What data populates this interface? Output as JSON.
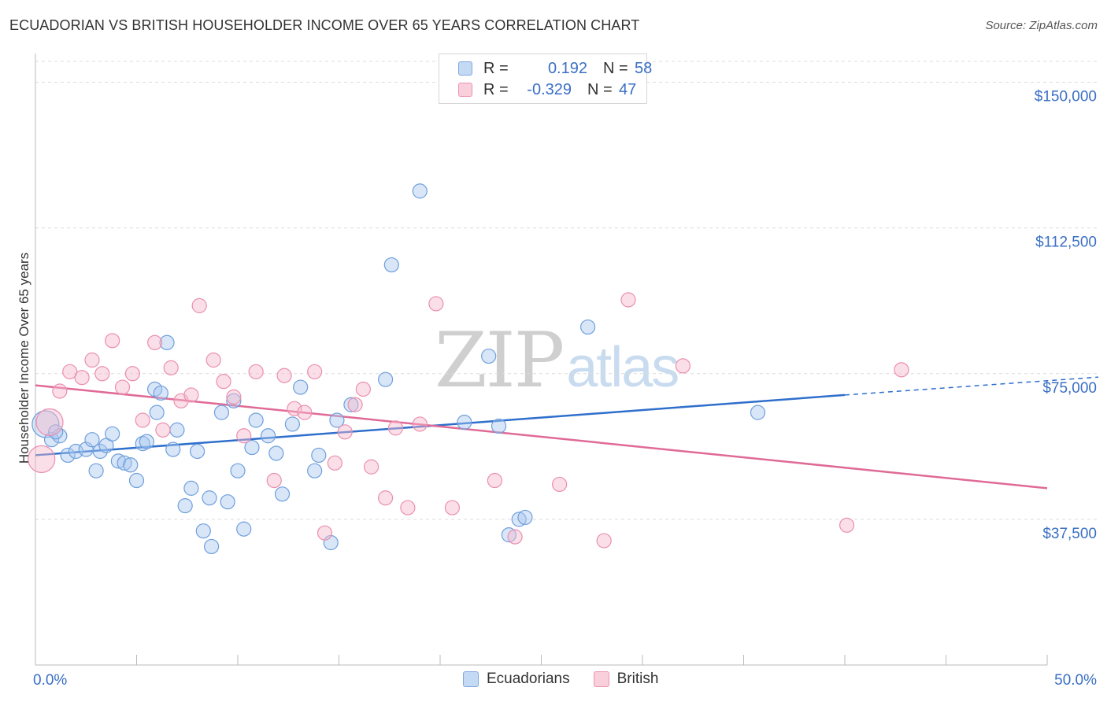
{
  "header": {
    "title": "ECUADORIAN VS BRITISH HOUSEHOLDER INCOME OVER 65 YEARS CORRELATION CHART",
    "source": "Source: ZipAtlas.com"
  },
  "watermark": {
    "zip": "ZIP",
    "atlas": "atlas"
  },
  "legend": {
    "rows": [
      {
        "r_label": "R =",
        "r_value": "0.192",
        "n_label": "N =",
        "n_value": "58",
        "color": "#a9c8f0"
      },
      {
        "r_label": "R =",
        "r_value": "-0.329",
        "n_label": "N =",
        "n_value": "47",
        "color": "#f6b8cb"
      }
    ]
  },
  "bottom_legend": {
    "items": [
      "Ecuadorians",
      "British"
    ]
  },
  "chart_data": {
    "type": "scatter",
    "ylabel": "Householder Income Over 65 years",
    "xlabel": "",
    "xlim": [
      0,
      50
    ],
    "ylim": [
      0,
      157000
    ],
    "x_tick_labels": [
      "0.0%",
      "50.0%"
    ],
    "y_ticks": [
      37500,
      75000,
      112500,
      150000
    ],
    "y_tick_labels": [
      "$37,500",
      "$75,000",
      "$112,500",
      "$150,000"
    ],
    "grid": true,
    "legend_position": "top-center",
    "colors": {
      "ecuadorians": "#a9c8f0",
      "ecuadorians_line": "#2f6fcc",
      "british": "#f6b8cb",
      "british_line": "#e06a96"
    },
    "series": [
      {
        "name": "Ecuadorians",
        "points": [
          [
            0.5,
            62000
          ],
          [
            0.8,
            58000
          ],
          [
            1.2,
            59000
          ],
          [
            1.6,
            54000
          ],
          [
            2.0,
            55000
          ],
          [
            2.5,
            55500
          ],
          [
            2.8,
            58000
          ],
          [
            3.2,
            55000
          ],
          [
            3.5,
            56500
          ],
          [
            3.8,
            59500
          ],
          [
            4.1,
            52500
          ],
          [
            4.4,
            52000
          ],
          [
            4.7,
            51500
          ],
          [
            5.0,
            47500
          ],
          [
            5.3,
            57000
          ],
          [
            5.5,
            57500
          ],
          [
            5.9,
            71000
          ],
          [
            6.2,
            70000
          ],
          [
            6.5,
            83000
          ],
          [
            6.8,
            55500
          ],
          [
            7.0,
            60500
          ],
          [
            7.4,
            41000
          ],
          [
            7.7,
            45500
          ],
          [
            8.0,
            55000
          ],
          [
            8.3,
            34500
          ],
          [
            8.6,
            43000
          ],
          [
            8.7,
            30500
          ],
          [
            9.2,
            65000
          ],
          [
            9.5,
            42000
          ],
          [
            9.8,
            68000
          ],
          [
            10.0,
            50000
          ],
          [
            10.3,
            35000
          ],
          [
            10.7,
            56000
          ],
          [
            10.9,
            63000
          ],
          [
            11.5,
            59000
          ],
          [
            11.9,
            54500
          ],
          [
            12.2,
            44000
          ],
          [
            12.7,
            62000
          ],
          [
            13.1,
            71500
          ],
          [
            13.8,
            50000
          ],
          [
            14.0,
            54000
          ],
          [
            14.6,
            31500
          ],
          [
            14.9,
            63000
          ],
          [
            15.6,
            67000
          ],
          [
            17.3,
            73500
          ],
          [
            17.6,
            103000
          ],
          [
            19.0,
            122000
          ],
          [
            21.2,
            62500
          ],
          [
            22.4,
            79500
          ],
          [
            22.9,
            61500
          ],
          [
            23.4,
            33500
          ],
          [
            23.9,
            37500
          ],
          [
            24.2,
            38000
          ],
          [
            27.3,
            87000
          ],
          [
            35.7,
            65000
          ],
          [
            1.0,
            60000
          ],
          [
            3.0,
            50000
          ],
          [
            6.0,
            65000
          ]
        ]
      },
      {
        "name": "British",
        "points": [
          [
            0.3,
            53000
          ],
          [
            0.7,
            62500
          ],
          [
            1.2,
            70500
          ],
          [
            1.7,
            75500
          ],
          [
            2.3,
            74000
          ],
          [
            2.8,
            78500
          ],
          [
            3.3,
            75000
          ],
          [
            3.8,
            83500
          ],
          [
            4.3,
            71500
          ],
          [
            4.8,
            75000
          ],
          [
            5.3,
            63000
          ],
          [
            5.9,
            83000
          ],
          [
            6.3,
            60500
          ],
          [
            6.7,
            76500
          ],
          [
            7.2,
            68000
          ],
          [
            7.7,
            69500
          ],
          [
            8.1,
            92500
          ],
          [
            8.8,
            78500
          ],
          [
            9.3,
            73000
          ],
          [
            9.8,
            69000
          ],
          [
            10.3,
            59000
          ],
          [
            10.9,
            75500
          ],
          [
            11.8,
            47500
          ],
          [
            12.3,
            74500
          ],
          [
            12.8,
            66000
          ],
          [
            13.3,
            65000
          ],
          [
            13.8,
            75500
          ],
          [
            14.3,
            34000
          ],
          [
            14.8,
            52000
          ],
          [
            15.3,
            60000
          ],
          [
            15.8,
            67000
          ],
          [
            16.2,
            71000
          ],
          [
            16.6,
            51000
          ],
          [
            17.3,
            43000
          ],
          [
            17.8,
            61000
          ],
          [
            18.4,
            40500
          ],
          [
            19.0,
            62000
          ],
          [
            19.8,
            93000
          ],
          [
            20.6,
            40500
          ],
          [
            22.7,
            47500
          ],
          [
            23.7,
            33000
          ],
          [
            25.9,
            46500
          ],
          [
            28.1,
            32000
          ],
          [
            29.3,
            94000
          ],
          [
            32.0,
            77000
          ],
          [
            40.1,
            36000
          ],
          [
            42.8,
            76000
          ]
        ]
      }
    ],
    "trendlines": [
      {
        "name": "Ecuadorians",
        "solid": [
          [
            0,
            54000
          ],
          [
            40,
            69500
          ]
        ],
        "dashed": [
          [
            40,
            69500
          ],
          [
            50,
            73500
          ]
        ]
      },
      {
        "name": "British",
        "solid": [
          [
            0,
            72000
          ],
          [
            50,
            45500
          ]
        ]
      }
    ]
  }
}
